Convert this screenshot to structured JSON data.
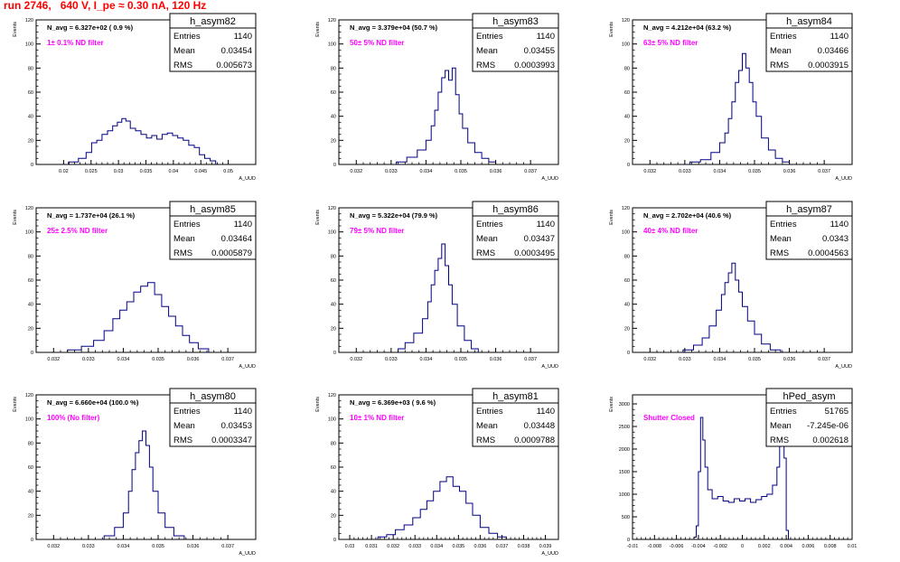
{
  "header": {
    "title": "run 2746,   640 V, I_pe ≈ 0.30 nA, 120 Hz"
  },
  "colors": {
    "histogram": "#000080",
    "annotation": "#ff00ff",
    "title": "#ff0000"
  },
  "chart_data": [
    {
      "type": "bar",
      "name": "h_asym82",
      "ylabel": "Events",
      "xlabel": "A_UUD",
      "ylim": [
        0,
        120
      ],
      "yticks": [
        0,
        20,
        40,
        60,
        80,
        100,
        120
      ],
      "xlim": [
        0.015,
        0.055
      ],
      "xticks": [
        [
          "0.02",
          0.02
        ],
        [
          "0.025",
          0.025
        ],
        [
          "0.03",
          0.03
        ],
        [
          "0.035",
          0.035
        ],
        [
          "0.04",
          0.04
        ],
        [
          "0.045",
          0.045
        ],
        [
          "0.05",
          0.05
        ]
      ],
      "navg": "N_avg = 6.327e+02 ( 0.9 %)",
      "filter": "1± 0.1% ND filter",
      "stats": [
        [
          "Entries",
          "1140"
        ],
        [
          "Mean",
          "0.03454"
        ],
        [
          "RMS",
          "0.005673"
        ]
      ],
      "bin_centers": [
        0.0218,
        0.0236,
        0.0246,
        0.0256,
        0.0265,
        0.0275,
        0.0285,
        0.0294,
        0.0302,
        0.031,
        0.0317,
        0.0326,
        0.0336,
        0.0346,
        0.0356,
        0.0365,
        0.0375,
        0.0384,
        0.0394,
        0.0403,
        0.0413,
        0.0423,
        0.0433,
        0.0443,
        0.0452,
        0.0462,
        0.0472
      ],
      "counts": [
        2,
        5,
        10,
        18,
        20,
        25,
        28,
        32,
        35,
        38,
        36,
        30,
        28,
        25,
        22,
        24,
        21,
        25,
        26,
        24,
        22,
        20,
        16,
        14,
        8,
        5,
        3
      ]
    },
    {
      "type": "bar",
      "name": "h_asym83",
      "ylabel": "Events",
      "xlabel": "A_UUD",
      "ylim": [
        0,
        120
      ],
      "yticks": [
        0,
        20,
        40,
        60,
        80,
        100,
        120
      ],
      "xlim": [
        0.0315,
        0.0378
      ],
      "xticks": [
        [
          "0.032",
          0.032
        ],
        [
          "0.033",
          0.033
        ],
        [
          "0.034",
          0.034
        ],
        [
          "0.035",
          0.035
        ],
        [
          "0.036",
          0.036
        ],
        [
          "0.037",
          0.037
        ]
      ],
      "navg": "N_avg = 3.379e+04 (50.7 %)",
      "filter": "50± 5% ND filter",
      "stats": [
        [
          "Entries",
          "1140"
        ],
        [
          "Mean",
          "0.03455"
        ],
        [
          "RMS",
          "0.0003993"
        ]
      ],
      "bin_centers": [
        0.0333,
        0.0336,
        0.0339,
        0.0341,
        0.0342,
        0.0343,
        0.0344,
        0.0345,
        0.0346,
        0.0347,
        0.0348,
        0.0349,
        0.035,
        0.0351,
        0.0353,
        0.0355,
        0.0357,
        0.0359
      ],
      "counts": [
        2,
        6,
        12,
        20,
        32,
        45,
        60,
        72,
        78,
        70,
        80,
        58,
        42,
        30,
        18,
        10,
        5,
        2
      ]
    },
    {
      "type": "bar",
      "name": "h_asym84",
      "ylabel": "Events",
      "xlabel": "A_UUD",
      "ylim": [
        0,
        120
      ],
      "yticks": [
        0,
        20,
        40,
        60,
        80,
        100,
        120
      ],
      "xlim": [
        0.0315,
        0.0378
      ],
      "xticks": [
        [
          "0.032",
          0.032
        ],
        [
          "0.033",
          0.033
        ],
        [
          "0.034",
          0.034
        ],
        [
          "0.035",
          0.035
        ],
        [
          "0.036",
          0.036
        ],
        [
          "0.037",
          0.037
        ]
      ],
      "navg": "N_avg = 4.212e+04 (63.2 %)",
      "filter": "63± 5% ND filter",
      "stats": [
        [
          "Entries",
          "1140"
        ],
        [
          "Mean",
          "0.03466"
        ],
        [
          "RMS",
          "0.0003915"
        ]
      ],
      "bin_centers": [
        0.0333,
        0.0336,
        0.0339,
        0.0341,
        0.0342,
        0.0343,
        0.0344,
        0.0345,
        0.0346,
        0.0347,
        0.0348,
        0.0349,
        0.035,
        0.0351,
        0.0353,
        0.0355,
        0.0357,
        0.0359
      ],
      "counts": [
        2,
        4,
        10,
        18,
        26,
        38,
        52,
        68,
        78,
        92,
        80,
        68,
        52,
        40,
        22,
        12,
        5,
        2
      ]
    },
    {
      "type": "bar",
      "name": "h_asym85",
      "ylabel": "Events",
      "xlabel": "A_UUD",
      "ylim": [
        0,
        120
      ],
      "yticks": [
        0,
        20,
        40,
        60,
        80,
        100,
        120
      ],
      "xlim": [
        0.0315,
        0.0378
      ],
      "xticks": [
        [
          "0.032",
          0.032
        ],
        [
          "0.033",
          0.033
        ],
        [
          "0.034",
          0.034
        ],
        [
          "0.035",
          0.035
        ],
        [
          "0.036",
          0.036
        ],
        [
          "0.037",
          0.037
        ]
      ],
      "navg": "N_avg = 1.737e+04 (26.1 %)",
      "filter": "25± 2.5% ND filter",
      "stats": [
        [
          "Entries",
          "1140"
        ],
        [
          "Mean",
          "0.03464"
        ],
        [
          "RMS",
          "0.0005879"
        ]
      ],
      "bin_centers": [
        0.0326,
        0.033,
        0.0333,
        0.0336,
        0.0338,
        0.034,
        0.0342,
        0.0344,
        0.0346,
        0.0348,
        0.035,
        0.0352,
        0.0354,
        0.0356,
        0.0358,
        0.036,
        0.0363
      ],
      "counts": [
        2,
        5,
        10,
        18,
        28,
        35,
        42,
        50,
        55,
        58,
        48,
        38,
        30,
        22,
        14,
        8,
        3
      ]
    },
    {
      "type": "bar",
      "name": "h_asym86",
      "ylabel": "Events",
      "xlabel": "A_UUD",
      "ylim": [
        0,
        120
      ],
      "yticks": [
        0,
        20,
        40,
        60,
        80,
        100,
        120
      ],
      "xlim": [
        0.0315,
        0.0378
      ],
      "xticks": [
        [
          "0.032",
          0.032
        ],
        [
          "0.033",
          0.033
        ],
        [
          "0.034",
          0.034
        ],
        [
          "0.035",
          0.035
        ],
        [
          "0.036",
          0.036
        ],
        [
          "0.037",
          0.037
        ]
      ],
      "navg": "N_avg = 5.322e+04 (79.9 %)",
      "filter": "79± 5% ND filter",
      "stats": [
        [
          "Entries",
          "1140"
        ],
        [
          "Mean",
          "0.03437"
        ],
        [
          "RMS",
          "0.0003495"
        ]
      ],
      "bin_centers": [
        0.0333,
        0.0335,
        0.0338,
        0.034,
        0.0341,
        0.0342,
        0.0343,
        0.0344,
        0.0345,
        0.0346,
        0.0347,
        0.0348,
        0.035,
        0.0352,
        0.0354
      ],
      "counts": [
        3,
        8,
        16,
        28,
        42,
        56,
        68,
        78,
        90,
        72,
        56,
        40,
        22,
        10,
        3
      ]
    },
    {
      "type": "bar",
      "name": "h_asym87",
      "ylabel": "Events",
      "xlabel": "A_UUD",
      "ylim": [
        0,
        120
      ],
      "yticks": [
        0,
        20,
        40,
        60,
        80,
        100,
        120
      ],
      "xlim": [
        0.0315,
        0.0378
      ],
      "xticks": [
        [
          "0.032",
          0.032
        ],
        [
          "0.033",
          0.033
        ],
        [
          "0.034",
          0.034
        ],
        [
          "0.035",
          0.035
        ],
        [
          "0.036",
          0.036
        ],
        [
          "0.037",
          0.037
        ]
      ],
      "navg": "N_avg = 2.702e+04 (40.6 %)",
      "filter": "40± 4% ND filter",
      "stats": [
        [
          "Entries",
          "1140"
        ],
        [
          "Mean",
          "0.0343"
        ],
        [
          "RMS",
          "0.0004563"
        ]
      ],
      "bin_centers": [
        0.0331,
        0.0334,
        0.0336,
        0.0338,
        0.034,
        0.0341,
        0.0342,
        0.0343,
        0.0344,
        0.0345,
        0.0346,
        0.0347,
        0.0349,
        0.0351,
        0.0353,
        0.0356
      ],
      "counts": [
        2,
        6,
        12,
        22,
        35,
        48,
        58,
        66,
        74,
        60,
        50,
        38,
        26,
        15,
        7,
        2
      ]
    },
    {
      "type": "bar",
      "name": "h_asym80",
      "ylabel": "Events",
      "xlabel": "A_UUD",
      "ylim": [
        0,
        120
      ],
      "yticks": [
        0,
        20,
        40,
        60,
        80,
        100,
        120
      ],
      "xlim": [
        0.0315,
        0.0378
      ],
      "xticks": [
        [
          "0.032",
          0.032
        ],
        [
          "0.033",
          0.033
        ],
        [
          "0.034",
          0.034
        ],
        [
          "0.035",
          0.035
        ],
        [
          "0.036",
          0.036
        ],
        [
          "0.037",
          0.037
        ]
      ],
      "navg": "N_avg = 6.660e+04 (100.0 %)",
      "filter": "100% (No filter)",
      "stats": [
        [
          "Entries",
          "1140"
        ],
        [
          "Mean",
          "0.03453"
        ],
        [
          "RMS",
          "0.0003347"
        ]
      ],
      "bin_centers": [
        0.0336,
        0.0339,
        0.0341,
        0.0342,
        0.0343,
        0.0344,
        0.0345,
        0.0346,
        0.0347,
        0.0348,
        0.0349,
        0.0351,
        0.0353,
        0.0356
      ],
      "counts": [
        3,
        10,
        22,
        40,
        58,
        72,
        82,
        90,
        78,
        60,
        40,
        22,
        10,
        3
      ]
    },
    {
      "type": "bar",
      "name": "h_asym81",
      "ylabel": "Events",
      "xlabel": "A_UUD",
      "ylim": [
        0,
        120
      ],
      "yticks": [
        0,
        20,
        40,
        60,
        80,
        100,
        120
      ],
      "xlim": [
        0.0295,
        0.0396
      ],
      "xticks": [
        [
          "0.03",
          0.03
        ],
        [
          "0.031",
          0.031
        ],
        [
          "0.032",
          0.032
        ],
        [
          "0.033",
          0.033
        ],
        [
          "0.034",
          0.034
        ],
        [
          "0.035",
          0.035
        ],
        [
          "0.036",
          0.036
        ],
        [
          "0.037",
          0.037
        ],
        [
          "0.038",
          0.038
        ],
        [
          "0.039",
          0.039
        ]
      ],
      "navg": "N_avg = 6.369e+03 ( 9.6 %)",
      "filter": "10± 1% ND filter",
      "stats": [
        [
          "Entries",
          "1140"
        ],
        [
          "Mean",
          "0.03448"
        ],
        [
          "RMS",
          "0.0009788"
        ]
      ],
      "bin_centers": [
        0.0315,
        0.0319,
        0.0323,
        0.0327,
        0.0331,
        0.0334,
        0.0337,
        0.034,
        0.0343,
        0.0346,
        0.0349,
        0.0352,
        0.0355,
        0.0358,
        0.0362,
        0.0366,
        0.037
      ],
      "counts": [
        2,
        4,
        8,
        12,
        18,
        25,
        32,
        40,
        48,
        52,
        44,
        40,
        30,
        20,
        10,
        5,
        2
      ]
    },
    {
      "type": "bar",
      "name": "hPed_asym",
      "ylabel": "Events",
      "xlabel": "",
      "ylim": [
        0,
        3200
      ],
      "yticks": [
        0,
        500,
        1000,
        1500,
        2000,
        2500,
        3000
      ],
      "xlim": [
        -0.01,
        0.01
      ],
      "xticks": [
        [
          "-0.01",
          -0.01
        ],
        [
          "-0.008",
          -0.008
        ],
        [
          "-0.006",
          -0.006
        ],
        [
          "-0.004",
          -0.004
        ],
        [
          "-0.002",
          -0.002
        ],
        [
          "0",
          0
        ],
        [
          "0.002",
          0.002
        ],
        [
          "0.004",
          0.004
        ],
        [
          "0.006",
          0.006
        ],
        [
          "0.008",
          0.008
        ],
        [
          "0.01",
          0.01
        ]
      ],
      "navg": "",
      "filter": "Shutter Closed",
      "stats": [
        [
          "Entries",
          "51765"
        ],
        [
          "Mean",
          "-7.245e-06"
        ],
        [
          "RMS",
          "0.002618"
        ]
      ],
      "bin_centers": [
        -0.0043,
        -0.0041,
        -0.0039,
        -0.0037,
        -0.0035,
        -0.0033,
        -0.003,
        -0.0025,
        -0.002,
        -0.0015,
        -0.001,
        -0.0005,
        0,
        0.0005,
        0.001,
        0.0015,
        0.002,
        0.0025,
        0.003,
        0.0033,
        0.0035,
        0.0037,
        0.0039,
        0.0041
      ],
      "counts": [
        50,
        300,
        1500,
        2700,
        2200,
        1600,
        1100,
        900,
        950,
        850,
        820,
        900,
        850,
        900,
        820,
        880,
        950,
        1000,
        1200,
        1600,
        2400,
        3100,
        1800,
        200
      ]
    }
  ]
}
